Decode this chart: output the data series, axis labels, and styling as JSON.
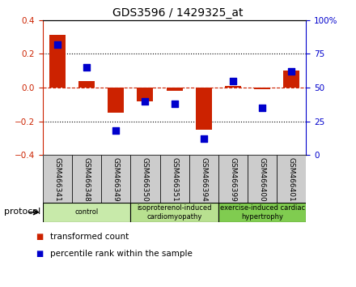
{
  "title": "GDS3596 / 1429325_at",
  "samples": [
    "GSM466341",
    "GSM466348",
    "GSM466349",
    "GSM466350",
    "GSM466351",
    "GSM466394",
    "GSM466399",
    "GSM466400",
    "GSM466401"
  ],
  "transformed_count": [
    0.31,
    0.04,
    -0.15,
    -0.08,
    -0.02,
    -0.25,
    0.01,
    -0.01,
    0.1
  ],
  "percentile_rank": [
    82,
    65,
    18,
    40,
    38,
    12,
    55,
    35,
    62
  ],
  "groups": [
    {
      "label": "control",
      "span": [
        0,
        3
      ],
      "color": "#c8eaaa"
    },
    {
      "label": "isoproterenol-induced\ncardiomyopathy",
      "span": [
        3,
        6
      ],
      "color": "#b8e090"
    },
    {
      "label": "exercise-induced cardiac\nhypertrophy",
      "span": [
        6,
        9
      ],
      "color": "#80cc50"
    }
  ],
  "bar_color": "#cc2200",
  "dot_color": "#0000cc",
  "zero_line_color": "#cc2200",
  "grid_color": "#000000",
  "ylim_left": [
    -0.4,
    0.4
  ],
  "ylim_right": [
    0,
    100
  ],
  "yticks_left": [
    -0.4,
    -0.2,
    0.0,
    0.2,
    0.4
  ],
  "yticks_right": [
    0,
    25,
    50,
    75,
    100
  ],
  "ytick_labels_right": [
    "0",
    "25",
    "50",
    "75",
    "100%"
  ],
  "legend_red": "transformed count",
  "legend_blue": "percentile rank within the sample",
  "protocol_label": "protocol",
  "bar_width": 0.55,
  "dot_size": 30
}
